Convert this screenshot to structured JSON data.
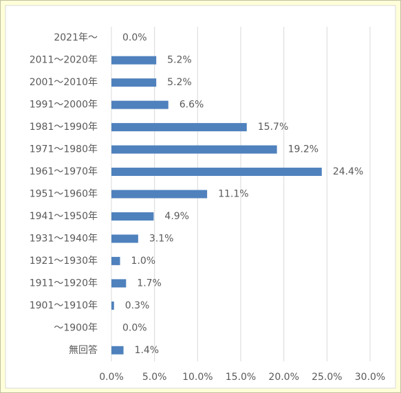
{
  "chart_data": {
    "type": "barh",
    "categories": [
      "2021年～",
      "2011～2020年",
      "2001～2010年",
      "1991～2000年",
      "1981～1990年",
      "1971～1980年",
      "1961～1970年",
      "1951～1960年",
      "1941～1950年",
      "1931～1940年",
      "1921～1930年",
      "1911～1920年",
      "1901～1910年",
      "～1900年",
      "無回答"
    ],
    "values": [
      0.0,
      5.2,
      5.2,
      6.6,
      15.7,
      19.2,
      24.4,
      11.1,
      4.9,
      3.1,
      1.0,
      1.7,
      0.3,
      0.0,
      1.4
    ],
    "value_labels": [
      "0.0%",
      "5.2%",
      "5.2%",
      "6.6%",
      "15.7%",
      "19.2%",
      "24.4%",
      "11.1%",
      "4.9%",
      "3.1%",
      "1.0%",
      "1.7%",
      "0.3%",
      "0.0%",
      "1.4%"
    ],
    "color": "#4f81bd",
    "xlim": [
      0,
      30
    ],
    "xticks": [
      {
        "value": 0,
        "label": "0.0%"
      },
      {
        "value": 5,
        "label": "5.0%"
      },
      {
        "value": 10,
        "label": "10.0%"
      },
      {
        "value": 15,
        "label": "15.0%"
      },
      {
        "value": 20,
        "label": "20.0%"
      },
      {
        "value": 25,
        "label": "25.0%"
      },
      {
        "value": 30,
        "label": "30.0%"
      }
    ],
    "grid": true
  }
}
